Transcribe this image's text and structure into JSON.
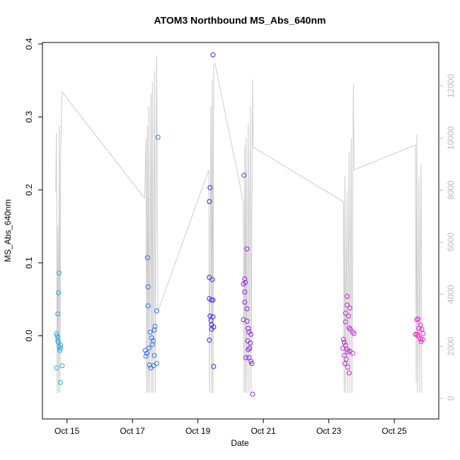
{
  "chart_data": {
    "type": "scatter",
    "title": "ATOM3 Northbound MS_Abs_640nm",
    "xlabel": "Date",
    "ylabel": "MS_Abs_640nm",
    "xlim": [
      14.25,
      26.36
    ],
    "ylim": [
      -0.114,
      0.402
    ],
    "y2lim": [
      -790,
      13670
    ],
    "xticks": [
      {
        "value": 15,
        "label": "Oct 15"
      },
      {
        "value": 17,
        "label": "Oct 17"
      },
      {
        "value": 19,
        "label": "Oct 19"
      },
      {
        "value": 21,
        "label": "Oct 21"
      },
      {
        "value": 23,
        "label": "Oct 23"
      },
      {
        "value": 25,
        "label": "Oct 25"
      }
    ],
    "yticks": [
      {
        "value": 0,
        "label": "0.0"
      },
      0.1,
      0.2,
      0.3,
      0.4
    ],
    "y2ticks": [
      0,
      2000,
      4000,
      6000,
      8000,
      10000,
      12000
    ],
    "series": [
      {
        "type": "line",
        "axis": "y2",
        "color": "#cccccc",
        "x": [
          14.655,
          14.677,
          14.698,
          14.72,
          14.741,
          14.763,
          14.784,
          14.806,
          14.849,
          17.371,
          17.414,
          17.435,
          17.457,
          17.478,
          17.5,
          17.522,
          17.565,
          17.586,
          17.608,
          17.629,
          17.672,
          17.694,
          17.737,
          17.78,
          19.332,
          19.353,
          19.397,
          19.418,
          19.44,
          19.461,
          19.483,
          19.526,
          20.388,
          20.409,
          20.431,
          20.453,
          20.474,
          20.496,
          20.539,
          20.561,
          20.603,
          20.625,
          20.668,
          20.69,
          23.448,
          23.47,
          23.491,
          23.513,
          23.556,
          23.578,
          23.621,
          23.642,
          23.685,
          23.707,
          23.75,
          23.772,
          25.647,
          25.668,
          25.69,
          25.711,
          25.754,
          25.776,
          25.819,
          25.841
        ],
        "values": [
          7961,
          10189,
          217,
          6657,
          217,
          10461,
          217,
          9455,
          11765,
          7689,
          9999,
          217,
          10461,
          217,
          11221,
          217,
          11710,
          217,
          12172,
          217,
          12580,
          217,
          13177,
          3342,
          8776,
          217,
          11221,
          217,
          12254,
          217,
          12851,
          12851,
          7553,
          217,
          9727,
          217,
          9999,
          217,
          10542,
          217,
          11221,
          217,
          12254,
          9645,
          7553,
          217,
          8559,
          217,
          7961,
          217,
          9455,
          217,
          9999,
          217,
          12091,
          8776,
          9727,
          625,
          10134,
          217,
          8504,
          217,
          8993,
          217
        ]
      },
      {
        "color": "#29a8e0",
        "x": [
          14.68,
          14.68,
          14.7,
          14.72,
          14.72,
          14.72,
          14.74,
          14.74,
          14.76,
          14.76,
          14.78,
          14.8,
          14.8,
          14.8,
          14.85
        ],
        "values": [
          0.003,
          -0.044,
          0,
          -0.003,
          -0.007,
          0.03,
          -0.009,
          0.059,
          0.086,
          -0.015,
          -0.02,
          -0.013,
          -0.017,
          -0.064,
          -0.041
        ]
      },
      {
        "color": "#2f6ff0",
        "x": [
          17.39,
          17.41,
          17.44,
          17.46,
          17.48,
          17.48,
          17.5,
          17.52,
          17.54,
          17.56,
          17.59,
          17.61,
          17.63,
          17.65,
          17.67,
          17.67,
          17.69,
          17.74,
          17.74,
          17.78
        ],
        "values": [
          -0.02,
          -0.028,
          -0.024,
          0.107,
          0.067,
          0.041,
          -0.017,
          -0.04,
          0.005,
          -0.044,
          -0.003,
          -0.012,
          -0.007,
          -0.041,
          0.008,
          -0.027,
          0.013,
          0.034,
          -0.038,
          0.272
        ]
      },
      {
        "color": "#3a22ee",
        "x": [
          19.35,
          19.35,
          19.35,
          19.35,
          19.37,
          19.37,
          19.4,
          19.42,
          19.42,
          19.42,
          19.44,
          19.46,
          19.46,
          19.46,
          19.48,
          19.48
        ],
        "values": [
          0.184,
          0.08,
          0.051,
          -0.006,
          0.203,
          0.027,
          0.021,
          0.049,
          0.015,
          0.009,
          0.077,
          0.385,
          0.049,
          0.026,
          0.012,
          -0.042
        ]
      },
      {
        "color": "#8a22dd",
        "x": [
          20.39,
          20.39,
          20.41,
          20.43,
          20.43,
          20.43,
          20.45,
          20.47,
          20.5,
          20.5,
          20.5,
          20.52,
          20.54,
          20.54,
          20.56,
          20.56,
          20.58,
          20.6,
          20.62,
          20.62,
          20.65,
          20.67
        ],
        "values": [
          0.071,
          0.022,
          0.22,
          0.078,
          0.06,
          0.046,
          0.073,
          -0.03,
          0.119,
          0.037,
          0.02,
          -0.007,
          0.01,
          -0.019,
          0.005,
          -0.03,
          -0.017,
          -0.01,
          0.002,
          -0.035,
          -0.038,
          -0.08
        ]
      },
      {
        "color": "#cc22dd",
        "x": [
          23.43,
          23.45,
          23.47,
          23.47,
          23.49,
          23.51,
          23.51,
          23.51,
          23.53,
          23.56,
          23.56,
          23.56,
          23.58,
          23.58,
          23.6,
          23.62,
          23.62,
          23.64,
          23.64,
          23.66,
          23.73,
          23.73,
          23.77
        ],
        "values": [
          -0.017,
          -0.005,
          -0.009,
          -0.027,
          -0.038,
          0.031,
          0.019,
          -0.013,
          -0.032,
          0.054,
          0.042,
          -0.019,
          -0.043,
          -0.022,
          0.027,
          0.011,
          -0.051,
          0.038,
          -0.021,
          0.009,
          0.005,
          -0.024,
          0.003
        ]
      },
      {
        "color": "#ee22cc",
        "x": [
          25.65,
          25.69,
          25.69,
          25.73,
          25.73,
          25.75,
          25.8,
          25.8,
          25.82,
          25.84,
          25.86,
          25.88
        ],
        "values": [
          0.002,
          0.022,
          0.002,
          0.023,
          0,
          0.01,
          0.015,
          -0.004,
          -0.008,
          0.009,
          -0.005,
          0.003
        ]
      }
    ]
  }
}
